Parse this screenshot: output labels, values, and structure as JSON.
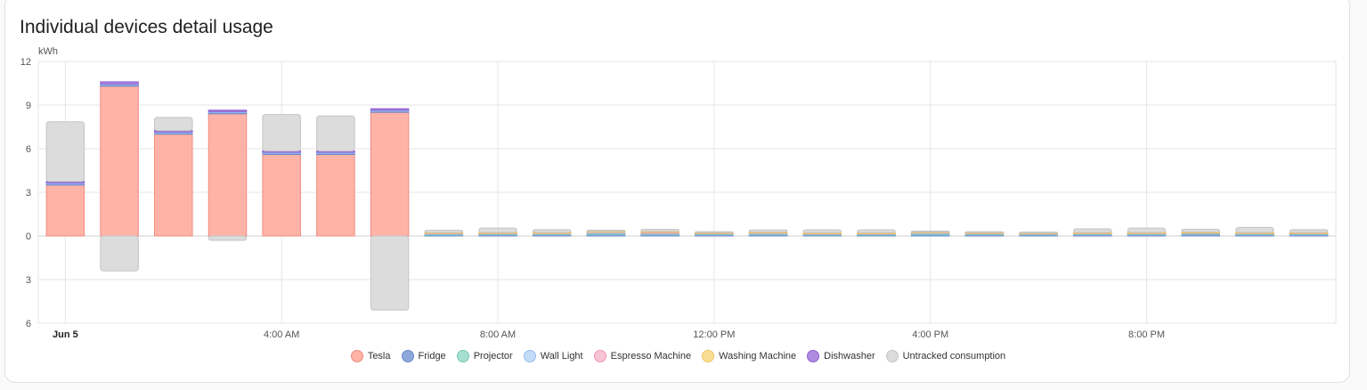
{
  "card": {
    "title": "Individual devices detail usage"
  },
  "chart_data": {
    "type": "bar",
    "stacked": true,
    "unit_label": "kWh",
    "ylim": [
      -6,
      12
    ],
    "y_ticks": [
      12,
      9,
      6,
      3,
      0,
      -3,
      -6
    ],
    "y_tick_labels": [
      "12",
      "9",
      "6",
      "3",
      "0",
      "3",
      "6"
    ],
    "x_tick_labels": [
      {
        "index": 0,
        "label": "Jun 5",
        "bold": true
      },
      {
        "index": 4,
        "label": "4:00 AM",
        "bold": false
      },
      {
        "index": 8,
        "label": "8:00 AM",
        "bold": false
      },
      {
        "index": 12,
        "label": "12:00 PM",
        "bold": false
      },
      {
        "index": 16,
        "label": "4:00 PM",
        "bold": false
      },
      {
        "index": 20,
        "label": "8:00 PM",
        "bold": false
      }
    ],
    "hours": [
      "12:00 AM",
      "1:00 AM",
      "2:00 AM",
      "3:00 AM",
      "4:00 AM",
      "5:00 AM",
      "6:00 AM",
      "7:00 AM",
      "8:00 AM",
      "9:00 AM",
      "10:00 AM",
      "11:00 AM",
      "12:00 PM",
      "1:00 PM",
      "2:00 PM",
      "3:00 PM",
      "4:00 PM",
      "5:00 PM",
      "6:00 PM",
      "7:00 PM",
      "8:00 PM",
      "9:00 PM",
      "10:00 PM",
      "11:00 PM"
    ],
    "grid": true,
    "legend_position": "bottom",
    "series": [
      {
        "name": "Tesla",
        "color": "#ffb3a7",
        "border": "#f28b82",
        "values": [
          3.5,
          10.3,
          7.0,
          8.4,
          5.6,
          5.6,
          8.5,
          0,
          0,
          0,
          0,
          0,
          0,
          0,
          0,
          0,
          0,
          0,
          0,
          0,
          0,
          0,
          0,
          0
        ]
      },
      {
        "name": "Fridge",
        "color": "#8fa8dc",
        "border": "#6b88cc",
        "values": [
          0.1,
          0.1,
          0.1,
          0.1,
          0.1,
          0.1,
          0.1,
          0.1,
          0.12,
          0.12,
          0.15,
          0.12,
          0.12,
          0.12,
          0.1,
          0.1,
          0.12,
          0.12,
          0.1,
          0.12,
          0.12,
          0.15,
          0.12,
          0.12
        ]
      },
      {
        "name": "Projector",
        "color": "#a6e0cf",
        "border": "#74c9b1",
        "values": [
          0,
          0,
          0,
          0,
          0,
          0,
          0,
          0.02,
          0.02,
          0.02,
          0.02,
          0.02,
          0.02,
          0.02,
          0.02,
          0.02,
          0.02,
          0.02,
          0.02,
          0.02,
          0.02,
          0.02,
          0.02,
          0.02
        ]
      },
      {
        "name": "Wall Light",
        "color": "#c3dcf7",
        "border": "#93bdee",
        "values": [
          0.05,
          0.05,
          0.05,
          0.05,
          0.05,
          0.05,
          0.05,
          0.05,
          0.05,
          0.05,
          0.1,
          0.05,
          0.05,
          0.05,
          0.05,
          0.05,
          0.1,
          0.05,
          0.05,
          0.05,
          0.05,
          0.05,
          0.05,
          0.05
        ]
      },
      {
        "name": "Espresso Machine",
        "color": "#f8c3d6",
        "border": "#f095b6",
        "values": [
          0,
          0,
          0,
          0,
          0,
          0,
          0,
          0.05,
          0.03,
          0.03,
          0.03,
          0.1,
          0.03,
          0.05,
          0.03,
          0.03,
          0.03,
          0.03,
          0.03,
          0.03,
          0.03,
          0.03,
          0.03,
          0.03
        ]
      },
      {
        "name": "Washing Machine",
        "color": "#f9dc96",
        "border": "#f2c55c",
        "values": [
          0,
          0,
          0,
          0,
          0,
          0,
          0,
          0.02,
          0.02,
          0.02,
          0.02,
          0.02,
          0.02,
          0.02,
          0.02,
          0.02,
          0.02,
          0.02,
          0.02,
          0.02,
          0.02,
          0.02,
          0.02,
          0.02
        ]
      },
      {
        "name": "Dishwasher",
        "color": "#b08be0",
        "border": "#8e5ed2",
        "values": [
          0.1,
          0.15,
          0.1,
          0.1,
          0.1,
          0.1,
          0.1,
          0,
          0,
          0,
          0,
          0,
          0,
          0,
          0,
          0,
          0,
          0,
          0,
          0,
          0,
          0,
          0,
          0
        ]
      },
      {
        "name": "Untracked consumption",
        "color": "#dcdcdc",
        "border": "#c4c4c4",
        "values": [
          4.1,
          -2.4,
          0.9,
          -0.3,
          2.5,
          2.4,
          -5.1,
          0.15,
          0.3,
          0.2,
          0.08,
          0.15,
          0.05,
          0.15,
          0.2,
          0.2,
          0.05,
          0.05,
          0.05,
          0.25,
          0.3,
          0.2,
          0.35,
          0.2
        ]
      }
    ]
  }
}
